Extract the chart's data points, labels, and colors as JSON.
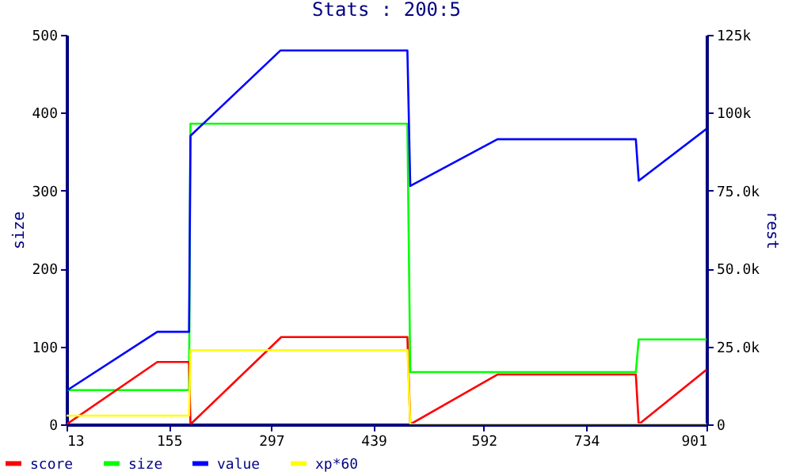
{
  "chart_data": {
    "type": "line",
    "title": "Stats : 200:5",
    "ylabel": "size",
    "y2label": "rest",
    "legend": "bottom left",
    "xlim": [
      13,
      901
    ],
    "xticks": [
      13,
      155,
      297,
      439,
      592,
      734,
      901
    ],
    "ylim": [
      0,
      500
    ],
    "yticks": [
      0,
      100,
      200,
      300,
      400,
      500
    ],
    "y2lim": [
      0,
      125000
    ],
    "y2ticks": [
      {
        "value": 0,
        "label": "0"
      },
      {
        "value": 25000,
        "label": "25.0k"
      },
      {
        "value": 50000,
        "label": "50.0k"
      },
      {
        "value": 75000,
        "label": "75.0k"
      },
      {
        "value": 100000,
        "label": "100k"
      },
      {
        "value": 125000,
        "label": "125k"
      }
    ],
    "series": [
      {
        "name": "score",
        "color": "#ff0000",
        "axis": "y2",
        "x": [
          13,
          139,
          183,
          185,
          311,
          486,
          490,
          611,
          803,
          807,
          901
        ],
        "values": [
          0,
          20000,
          20000,
          0,
          28000,
          28000,
          0,
          16000,
          16000,
          0,
          17500
        ]
      },
      {
        "name": "size",
        "color": "#00ff00",
        "x": [
          13,
          183,
          185,
          486,
          490,
          803,
          807,
          901
        ],
        "values": [
          44,
          44,
          386,
          386,
          67,
          67,
          109,
          109
        ]
      },
      {
        "name": "value",
        "color": "#0000ff",
        "axis": "y2",
        "x": [
          13,
          139,
          183,
          185,
          310,
          486,
          490,
          611,
          803,
          807,
          901
        ],
        "values": [
          10800,
          29700,
          29700,
          92600,
          120000,
          120000,
          76500,
          91500,
          91500,
          78200,
          94800
        ]
      },
      {
        "name": "xp*60",
        "color": "#ffff00",
        "axis": "y2",
        "x": [
          13,
          183,
          185,
          486,
          490,
          901
        ],
        "values": [
          2800,
          2800,
          23800,
          23800,
          0,
          0
        ]
      }
    ]
  }
}
